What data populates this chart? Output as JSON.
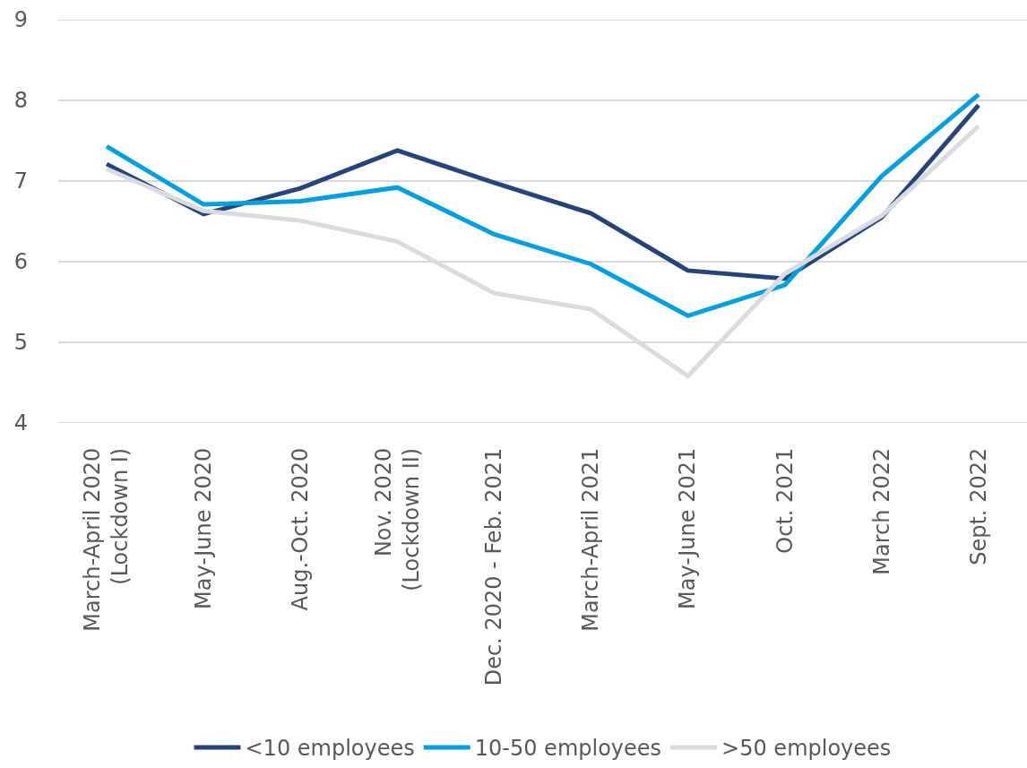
{
  "chart_data": {
    "type": "line",
    "categories": [
      "March-April 2020\n(Lockdown I)",
      "May-June 2020",
      "Aug.-Oct. 2020",
      "Nov. 2020\n(Lockdown II)",
      "Dec. 2020 - Feb. 2021",
      "March-April 2021",
      "May-June 2021",
      "Oct. 2021",
      "March 2022",
      "Sept. 2022"
    ],
    "series": [
      {
        "name": "<10 employees",
        "color": "#264478",
        "values": [
          7.21,
          6.59,
          6.91,
          7.38,
          6.98,
          6.6,
          5.89,
          5.79,
          6.55,
          7.94
        ]
      },
      {
        "name": "10-50 employees",
        "color": "#009fdf",
        "values": [
          7.43,
          6.71,
          6.75,
          6.92,
          6.34,
          5.97,
          5.33,
          5.71,
          7.06,
          8.07
        ]
      },
      {
        "name": ">50 employees",
        "color": "#d9dcde",
        "values": [
          7.15,
          6.63,
          6.51,
          6.25,
          5.61,
          5.41,
          4.58,
          5.85,
          6.57,
          7.68
        ]
      }
    ],
    "ylim": [
      4,
      9
    ],
    "yticks": [
      4,
      5,
      6,
      7,
      8,
      9
    ],
    "grid": "y",
    "legend": "bottom",
    "line_style": "solid"
  }
}
